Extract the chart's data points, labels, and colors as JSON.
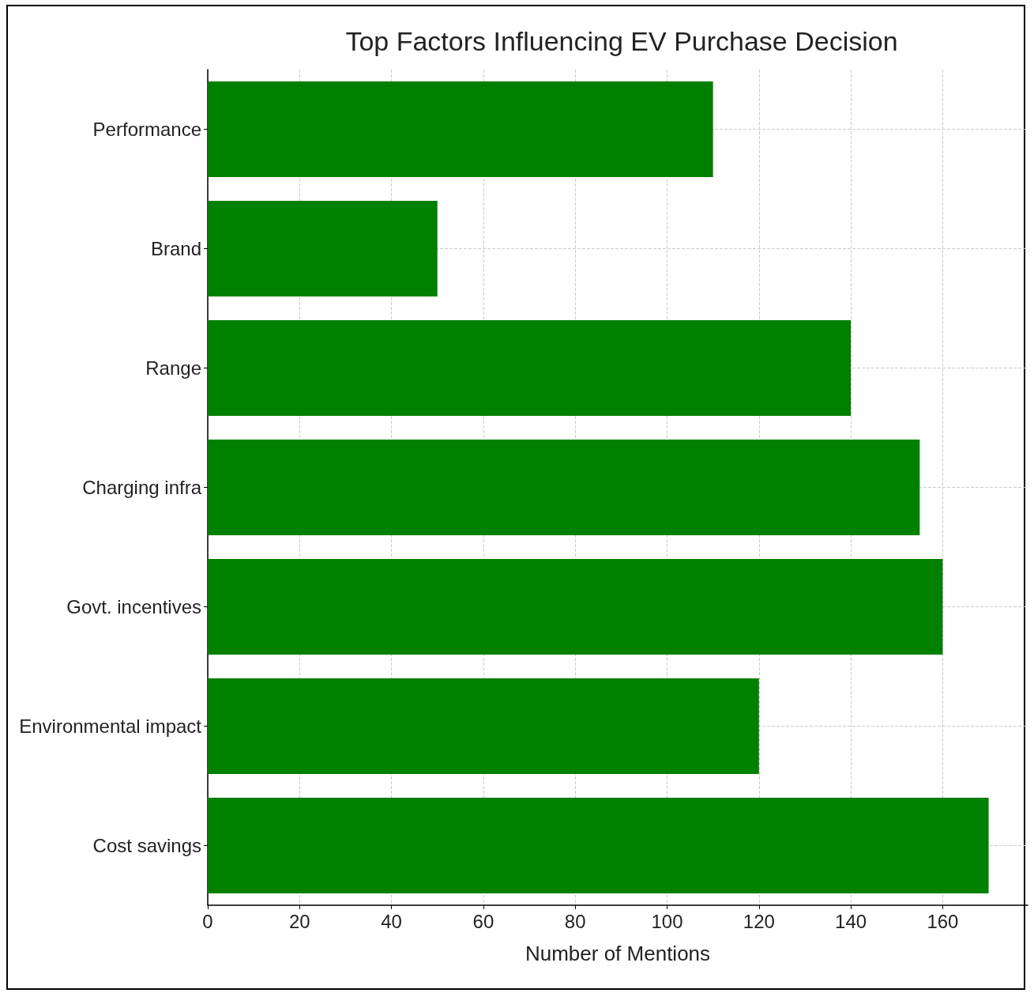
{
  "chart_data": {
    "type": "bar",
    "orientation": "horizontal",
    "title": "Top Factors Influencing EV Purchase Decision",
    "xlabel": "Number of Mentions",
    "categories": [
      "Performance",
      "Brand",
      "Range",
      "Charging infra",
      "Govt. incentives",
      "Environmental impact",
      "Cost savings"
    ],
    "values": [
      110,
      50,
      140,
      155,
      160,
      120,
      170
    ],
    "color": "#008000",
    "xlim": [
      0,
      178.5
    ],
    "xticks": [
      0,
      20,
      40,
      60,
      80,
      100,
      120,
      140,
      160
    ],
    "grid": true
  }
}
